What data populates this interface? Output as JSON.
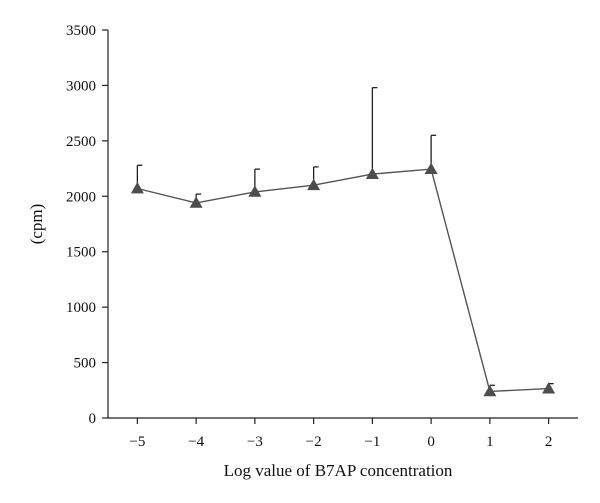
{
  "chart_data": {
    "type": "line",
    "title": "",
    "xlabel": "Log value of B7AP concentration",
    "ylabel": "(cpm)",
    "x": [
      -5,
      -4,
      -3,
      -2,
      -1,
      0,
      1,
      2
    ],
    "x_tick_labels": [
      "−5",
      "−4",
      "−3",
      "−2",
      "−1",
      "0",
      "1",
      "2"
    ],
    "xlim": [
      -5.5,
      2.5
    ],
    "ylim": [
      0,
      3500
    ],
    "yticks": [
      0,
      500,
      1000,
      1500,
      2000,
      2500,
      3000,
      3500
    ],
    "y_tick_labels": [
      "0",
      "500",
      "1000",
      "1500",
      "2000",
      "2500",
      "3000",
      "3500"
    ],
    "grid": false,
    "marker": "triangle",
    "series": [
      {
        "values": [
          2070,
          1940,
          2040,
          2100,
          2200,
          2245,
          240,
          265
        ],
        "error_upper": [
          2280,
          2020,
          2245,
          2265,
          2980,
          2550,
          295,
          310
        ],
        "color": "#555555",
        "marker_color": "#4d4d4d"
      }
    ]
  }
}
